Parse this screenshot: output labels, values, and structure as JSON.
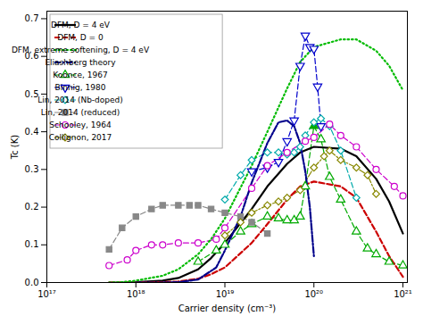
{
  "chart_data": {
    "type": "line",
    "xlabel": "Carrier density (cm⁻³)",
    "ylabel": "Tc (K)",
    "log": "x",
    "xlim": [
      1e+17,
      1.1220184543019633e+21
    ],
    "xticks": [
      {
        "value": 1e+17,
        "label": "10¹⁷"
      },
      {
        "value": 1e+18,
        "label": "10¹⁸"
      },
      {
        "value": 1e+19,
        "label": "10¹⁹"
      },
      {
        "value": 1e+20,
        "label": "10²⁰"
      },
      {
        "value": 1e+21,
        "label": "10²¹"
      }
    ],
    "ylim": [
      0.0,
      0.72
    ],
    "yticks": [
      {
        "value": 0.0,
        "label": "0.0"
      },
      0.1,
      0.2,
      0.3,
      0.4,
      0.5,
      0.6,
      0.7
    ],
    "grid": false,
    "legend": "upper left",
    "series": [
      {
        "name": "DFM, D = 4 eV",
        "color": "#000000",
        "line_style": "solid",
        "x": [
          5e+17,
          7e+17,
          1e+18,
          2e+18,
          3e+18,
          5e+18,
          7e+18,
          1e+19,
          2e+19,
          3e+19,
          5e+19,
          7e+19,
          1e+20,
          2e+20,
          3e+20,
          5e+20,
          7e+20,
          1e+21
        ],
        "values": [
          0.0,
          0.0,
          0.001,
          0.005,
          0.012,
          0.035,
          0.065,
          0.105,
          0.195,
          0.255,
          0.315,
          0.345,
          0.36,
          0.355,
          0.335,
          0.275,
          0.215,
          0.13
        ]
      },
      {
        "name": "DFM, D = 0",
        "color": "#cc0000",
        "line_style": "dashed",
        "x": [
          5e+17,
          7e+17,
          1e+18,
          2e+18,
          3e+18,
          5e+18,
          7e+18,
          1e+19,
          2e+19,
          3e+19,
          5e+19,
          7e+19,
          1e+20,
          2e+20,
          3e+20,
          5e+20,
          7e+20,
          1e+21
        ],
        "values": [
          0.0,
          0.0,
          0.0,
          0.001,
          0.003,
          0.01,
          0.022,
          0.04,
          0.105,
          0.155,
          0.22,
          0.255,
          0.268,
          0.255,
          0.225,
          0.135,
          0.07,
          0.015
        ]
      },
      {
        "name": "DFM, extreme softening, D = 4 eV",
        "color": "#00bb00",
        "line_style": "dotted",
        "x": [
          5e+17,
          7e+17,
          1e+18,
          2e+18,
          3e+18,
          5e+18,
          7e+18,
          1e+19,
          2e+19,
          3e+19,
          5e+19,
          7e+19,
          1e+20,
          2e+20,
          3e+20,
          5e+20,
          7e+20,
          1e+21
        ],
        "values": [
          0.0,
          0.001,
          0.005,
          0.018,
          0.035,
          0.075,
          0.115,
          0.17,
          0.31,
          0.4,
          0.515,
          0.585,
          0.625,
          0.645,
          0.645,
          0.615,
          0.575,
          0.51
        ]
      },
      {
        "name": "Eliashberg theory",
        "color": "#00008b",
        "line_style": "dashdot",
        "x": [
          1e+18,
          2e+18,
          3e+18,
          5e+18,
          8e+18,
          1e+19,
          1.5e+19,
          2e+19,
          3e+19,
          4e+19,
          5e+19,
          6e+19,
          7e+19,
          8e+19,
          9e+19,
          1e+20
        ],
        "values": [
          0.0,
          0.0,
          0.001,
          0.008,
          0.04,
          0.085,
          0.175,
          0.265,
          0.37,
          0.425,
          0.43,
          0.415,
          0.37,
          0.295,
          0.2,
          0.07
        ]
      },
      {
        "name": "Koonce, 1967",
        "color": "#00aa00",
        "line_style": "dashed",
        "marker": "triangle-up",
        "x": [
          5e+18,
          8e+18,
          1e+19,
          1.5e+19,
          2e+19,
          3e+19,
          4e+19,
          5e+19,
          6e+19,
          7e+19,
          8e+19,
          1e+20,
          1.2e+20,
          1.5e+20,
          2e+20,
          3e+20,
          4e+20,
          5e+20,
          7e+20,
          1e+21
        ],
        "values": [
          0.055,
          0.085,
          0.1,
          0.135,
          0.155,
          0.175,
          0.17,
          0.165,
          0.165,
          0.175,
          0.255,
          0.415,
          0.38,
          0.28,
          0.22,
          0.135,
          0.09,
          0.075,
          0.055,
          0.045
        ],
        "filled": [
          false,
          false,
          false,
          false,
          false,
          false,
          false,
          false,
          false,
          false,
          false,
          true,
          false,
          false,
          false,
          false,
          false,
          false,
          false,
          false
        ]
      },
      {
        "name": "Binnig, 1980",
        "color": "#0000cc",
        "line_style": "dashed",
        "marker": "triangle-down",
        "x": [
          2e+19,
          3e+19,
          4e+19,
          5e+19,
          6e+19,
          7e+19,
          8e+19,
          9e+19,
          1e+20,
          1.1e+20,
          1.2e+20
        ],
        "values": [
          0.295,
          0.305,
          0.32,
          0.375,
          0.43,
          0.575,
          0.655,
          0.625,
          0.62,
          0.52,
          0.415
        ]
      },
      {
        "name": "Lin, 2014 (Nb-doped)",
        "color": "#00aaaa",
        "line_style": "dashed",
        "marker": "diamond",
        "x": [
          1e+19,
          1.5e+19,
          2e+19,
          3e+19,
          4e+19,
          5e+19,
          6e+19,
          7e+19,
          8e+19,
          1e+20,
          1.2e+20,
          1.5e+20,
          2e+20,
          3e+20
        ],
        "values": [
          0.22,
          0.285,
          0.325,
          0.345,
          0.345,
          0.34,
          0.345,
          0.36,
          0.39,
          0.425,
          0.435,
          0.415,
          0.35,
          0.225
        ]
      },
      {
        "name": "Lin, 2014 (reduced)",
        "color": "#888888",
        "line_style": "dashed",
        "marker": "filled-square",
        "x": [
          5e+17,
          7e+17,
          1e+18,
          1.5e+18,
          2e+18,
          3e+18,
          4e+18,
          5e+18,
          7e+18,
          1e+19,
          1.5e+19,
          2e+19,
          3e+19
        ],
        "values": [
          0.088,
          0.145,
          0.175,
          0.195,
          0.205,
          0.205,
          0.205,
          0.205,
          0.195,
          0.185,
          0.175,
          0.16,
          0.13
        ]
      },
      {
        "name": "Schooley, 1964",
        "color": "#cc00cc",
        "line_style": "dashed",
        "marker": "circle",
        "x": [
          5e+17,
          8e+17,
          1e+18,
          1.5e+18,
          2e+18,
          3e+18,
          5e+18,
          8e+18,
          1e+19,
          2e+19,
          3e+19,
          5e+19,
          8e+19,
          1e+20,
          1.5e+20,
          2e+20,
          3e+20,
          5e+20,
          8e+20,
          1e+21
        ],
        "values": [
          0.045,
          0.06,
          0.085,
          0.1,
          0.1,
          0.105,
          0.105,
          0.115,
          0.145,
          0.25,
          0.31,
          0.345,
          0.375,
          0.385,
          0.42,
          0.39,
          0.36,
          0.3,
          0.255,
          0.23
        ]
      },
      {
        "name": "Collignon, 2017",
        "color": "#888800",
        "line_style": "dashdot",
        "marker": "diamond",
        "x": [
          1e+19,
          1.5e+19,
          2e+19,
          3e+19,
          4e+19,
          5e+19,
          7e+19,
          1e+20,
          1.3e+20,
          1.5e+20,
          2e+20,
          3e+20,
          4e+20,
          5e+20
        ],
        "values": [
          0.125,
          0.16,
          0.185,
          0.205,
          0.215,
          0.225,
          0.245,
          0.305,
          0.335,
          0.35,
          0.325,
          0.305,
          0.285,
          0.235
        ]
      }
    ]
  }
}
